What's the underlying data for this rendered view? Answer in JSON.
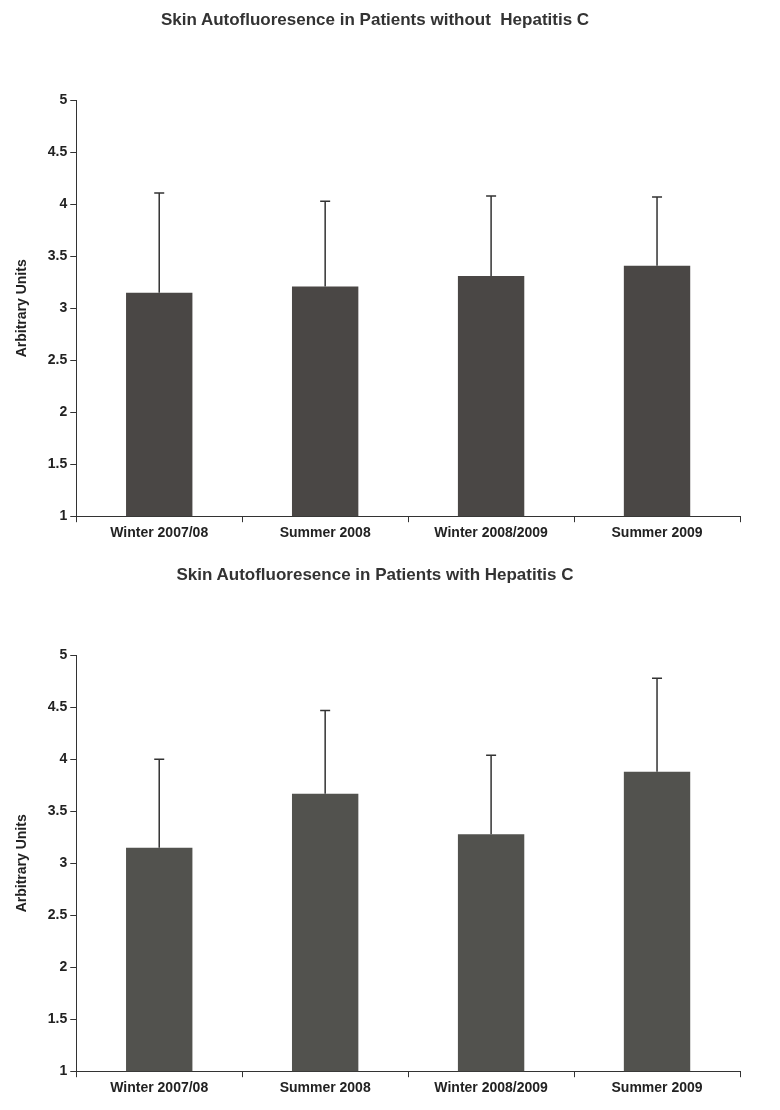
{
  "chart_data": [
    {
      "type": "bar",
      "title": "Skin Autofluoresence in Patients without  Hepatitis C",
      "ylabel": "Arbitrary Units",
      "categories": [
        "Winter 2007/08",
        "Summer 2008",
        "Winter 2008/2009",
        "Summer 2009"
      ],
      "values": [
        3.15,
        3.21,
        3.31,
        3.41
      ],
      "errors": [
        [
          3.15,
          4.11
        ],
        [
          3.21,
          4.03
        ],
        [
          3.31,
          4.08
        ],
        [
          3.41,
          4.07
        ]
      ],
      "color": "#4a4745",
      "ylim": [
        1,
        5
      ],
      "yticks": [
        1,
        1.5,
        2,
        2.5,
        3,
        3.5,
        4,
        4.5,
        5
      ],
      "grid": false,
      "legend": false
    },
    {
      "type": "bar",
      "title": "Skin Autofluoresence in Patients with Hepatitis C",
      "ylabel": "Arbitrary Units",
      "categories": [
        "Winter 2007/08",
        "Summer 2008",
        "Winter 2008/2009",
        "Summer 2009"
      ],
      "values": [
        3.15,
        3.67,
        3.28,
        3.88
      ],
      "errors": [
        [
          3.15,
          4.0
        ],
        [
          3.67,
          4.47
        ],
        [
          3.28,
          4.04
        ],
        [
          3.88,
          4.78
        ]
      ],
      "color": "#52524e",
      "ylim": [
        1,
        5
      ],
      "yticks": [
        1,
        1.5,
        2,
        2.5,
        3,
        3.5,
        4,
        4.5,
        5
      ],
      "grid": false,
      "legend": false
    }
  ]
}
